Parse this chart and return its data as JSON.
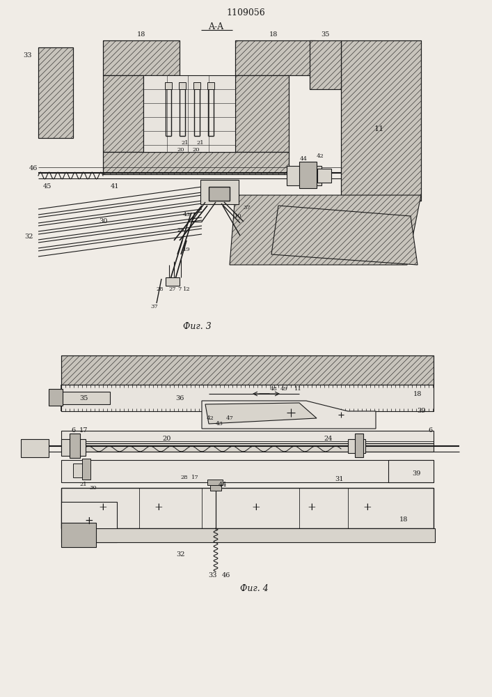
{
  "title": "1109056",
  "aa_label": "A-A",
  "fig3_caption": "Фиг. 3",
  "fig4_caption": "Фиг. 4",
  "bg_color": "#f0ece6",
  "line_color": "#1a1a1a",
  "hatch_light": "#c8c4bc",
  "fill_light": "#e8e4de",
  "fill_medium": "#d8d4cc",
  "fill_dark": "#b8b4ac"
}
